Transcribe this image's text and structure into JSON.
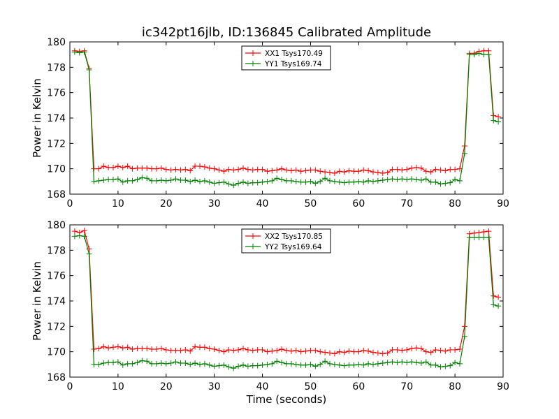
{
  "chart_data": [
    {
      "type": "line",
      "title": "ic342pt16jlb, ID:136845 Calibrated Amplitude",
      "xlabel": "",
      "ylabel": "Power in Kelvin",
      "xlim": [
        0,
        90
      ],
      "ylim": [
        168,
        180
      ],
      "xticks": [
        0,
        10,
        20,
        30,
        40,
        50,
        60,
        70,
        80,
        90
      ],
      "yticks": [
        168,
        170,
        172,
        174,
        176,
        178,
        180
      ],
      "legend_position": "top-center",
      "grid": false,
      "x": [
        1,
        2,
        3,
        4,
        5,
        6,
        7,
        8,
        9,
        10,
        11,
        12,
        13,
        14,
        15,
        16,
        17,
        18,
        19,
        20,
        21,
        22,
        23,
        24,
        25,
        26,
        27,
        28,
        29,
        30,
        31,
        32,
        33,
        34,
        35,
        36,
        37,
        38,
        39,
        40,
        41,
        42,
        43,
        44,
        45,
        46,
        47,
        48,
        49,
        50,
        51,
        52,
        53,
        54,
        55,
        56,
        57,
        58,
        59,
        60,
        61,
        62,
        63,
        64,
        65,
        66,
        67,
        68,
        69,
        70,
        71,
        72,
        73,
        74,
        75,
        76,
        77,
        78,
        79,
        80,
        81,
        82,
        83,
        84,
        85,
        86,
        87,
        88,
        89
      ],
      "series": [
        {
          "name": "XX1 Tsys170.49",
          "color": "#ff0000",
          "values": [
            179.3,
            179.25,
            179.3,
            177.9,
            170.0,
            170.0,
            170.2,
            170.1,
            170.1,
            170.2,
            170.1,
            170.2,
            170.0,
            170.05,
            170.05,
            170.05,
            170.0,
            170.0,
            170.05,
            169.95,
            169.9,
            169.95,
            169.9,
            169.95,
            169.85,
            170.2,
            170.2,
            170.15,
            170.05,
            170.0,
            169.9,
            169.8,
            169.95,
            169.9,
            169.95,
            170.05,
            169.95,
            169.9,
            169.95,
            169.95,
            169.8,
            169.85,
            169.9,
            170.0,
            169.9,
            169.85,
            169.9,
            169.8,
            169.85,
            169.9,
            169.9,
            169.8,
            169.75,
            169.7,
            169.65,
            169.8,
            169.75,
            169.85,
            169.8,
            169.8,
            169.9,
            169.85,
            169.75,
            169.7,
            169.65,
            169.7,
            169.95,
            169.95,
            169.9,
            169.95,
            170.05,
            170.1,
            170.05,
            169.8,
            169.75,
            169.95,
            169.9,
            169.85,
            169.95,
            169.95,
            170.0,
            171.8,
            179.1,
            179.1,
            179.25,
            179.3,
            179.3,
            174.2,
            174.1
          ],
          "note": ""
        },
        {
          "name": "YY1 Tsys169.74",
          "color": "#008000",
          "values": [
            179.2,
            179.15,
            179.2,
            177.8,
            169.0,
            169.05,
            169.1,
            169.15,
            169.15,
            169.2,
            168.95,
            169.05,
            169.05,
            169.15,
            169.3,
            169.25,
            169.05,
            169.05,
            169.1,
            169.05,
            169.1,
            169.2,
            169.1,
            169.1,
            169.0,
            169.1,
            169.0,
            169.05,
            168.95,
            168.85,
            168.9,
            168.95,
            168.8,
            168.7,
            168.85,
            168.95,
            168.85,
            168.9,
            168.9,
            168.95,
            169.0,
            169.05,
            169.25,
            169.15,
            169.05,
            169.05,
            169.0,
            168.95,
            168.95,
            169.0,
            168.85,
            169.0,
            169.25,
            169.05,
            169.0,
            168.95,
            168.9,
            168.95,
            168.95,
            169.0,
            168.95,
            169.05,
            169.0,
            169.05,
            169.1,
            169.15,
            169.2,
            169.15,
            169.2,
            169.15,
            169.2,
            169.15,
            169.1,
            169.2,
            168.95,
            168.95,
            168.8,
            168.85,
            168.9,
            169.15,
            169.05,
            171.2,
            179.0,
            179.0,
            179.1,
            179.0,
            179.0,
            173.8,
            173.7
          ]
        }
      ]
    },
    {
      "type": "line",
      "title": "",
      "xlabel": "Time (seconds)",
      "ylabel": "Power in Kelvin",
      "xlim": [
        0,
        90
      ],
      "ylim": [
        168,
        180
      ],
      "xticks": [
        0,
        10,
        20,
        30,
        40,
        50,
        60,
        70,
        80,
        90
      ],
      "yticks": [
        168,
        170,
        172,
        174,
        176,
        178,
        180
      ],
      "legend_position": "top-center",
      "grid": false,
      "x": [
        1,
        2,
        3,
        4,
        5,
        6,
        7,
        8,
        9,
        10,
        11,
        12,
        13,
        14,
        15,
        16,
        17,
        18,
        19,
        20,
        21,
        22,
        23,
        24,
        25,
        26,
        27,
        28,
        29,
        30,
        31,
        32,
        33,
        34,
        35,
        36,
        37,
        38,
        39,
        40,
        41,
        42,
        43,
        44,
        45,
        46,
        47,
        48,
        49,
        50,
        51,
        52,
        53,
        54,
        55,
        56,
        57,
        58,
        59,
        60,
        61,
        62,
        63,
        64,
        65,
        66,
        67,
        68,
        69,
        70,
        71,
        72,
        73,
        74,
        75,
        76,
        77,
        78,
        79,
        80,
        81,
        82,
        83,
        84,
        85,
        86,
        87,
        88,
        89
      ],
      "series": [
        {
          "name": "XX2 Tsys170.85",
          "color": "#ff0000",
          "values": [
            179.5,
            179.4,
            179.55,
            178.1,
            170.2,
            170.25,
            170.4,
            170.3,
            170.35,
            170.4,
            170.3,
            170.35,
            170.2,
            170.25,
            170.25,
            170.25,
            170.2,
            170.2,
            170.25,
            170.15,
            170.1,
            170.1,
            170.1,
            170.15,
            170.05,
            170.4,
            170.35,
            170.35,
            170.25,
            170.2,
            170.1,
            170.0,
            170.15,
            170.1,
            170.15,
            170.25,
            170.15,
            170.1,
            170.15,
            170.15,
            170.0,
            170.05,
            170.1,
            170.2,
            170.1,
            170.05,
            170.1,
            170.0,
            170.05,
            170.1,
            170.1,
            170.0,
            169.95,
            169.9,
            169.85,
            170.0,
            169.95,
            170.05,
            170.0,
            170.0,
            170.1,
            170.05,
            169.95,
            169.9,
            169.85,
            169.9,
            170.15,
            170.15,
            170.1,
            170.15,
            170.25,
            170.3,
            170.25,
            170.0,
            169.95,
            170.15,
            170.1,
            170.05,
            170.15,
            170.15,
            170.2,
            172.0,
            179.3,
            179.35,
            179.4,
            179.45,
            179.5,
            174.4,
            174.3
          ]
        },
        {
          "name": "YY2 Tsys169.64",
          "color": "#008000",
          "values": [
            179.1,
            179.15,
            179.1,
            177.7,
            169.0,
            169.0,
            169.1,
            169.15,
            169.15,
            169.2,
            168.95,
            169.05,
            169.05,
            169.15,
            169.3,
            169.25,
            169.05,
            169.05,
            169.1,
            169.05,
            169.1,
            169.2,
            169.1,
            169.1,
            169.0,
            169.1,
            169.0,
            169.05,
            168.95,
            168.85,
            168.9,
            168.95,
            168.8,
            168.7,
            168.85,
            168.95,
            168.85,
            168.9,
            168.9,
            168.95,
            169.0,
            169.05,
            169.25,
            169.15,
            169.05,
            169.05,
            169.0,
            168.95,
            168.95,
            169.0,
            168.85,
            169.0,
            169.25,
            169.05,
            169.0,
            168.95,
            168.9,
            168.95,
            168.95,
            169.0,
            168.95,
            169.05,
            169.0,
            169.05,
            169.1,
            169.15,
            169.2,
            169.15,
            169.2,
            169.15,
            169.2,
            169.15,
            169.1,
            169.2,
            168.95,
            168.95,
            168.8,
            168.85,
            168.9,
            169.15,
            169.05,
            171.2,
            179.0,
            179.0,
            179.0,
            179.0,
            179.0,
            173.7,
            173.6
          ]
        }
      ]
    }
  ]
}
